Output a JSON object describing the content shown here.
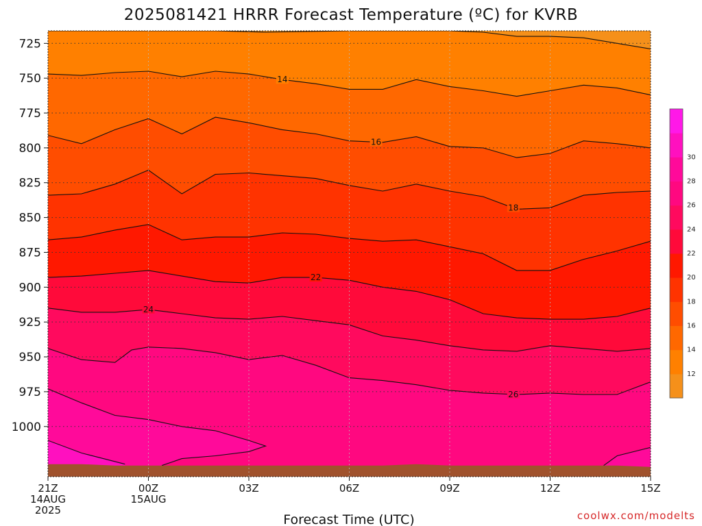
{
  "chart_data": {
    "type": "heatmap",
    "title": "2025081421 HRRR Forecast Temperature (ºC) for KVRB",
    "xlabel": "Forecast Time (UTC)",
    "ylabel": "",
    "credit": "coolwx.com/modelts",
    "y_scale": "pressure (inverted, hPa)",
    "ylim": [
      1036,
      716
    ],
    "y_ticks": [
      725,
      750,
      775,
      800,
      825,
      850,
      875,
      900,
      925,
      950,
      975,
      1000
    ],
    "x_ticks": [
      {
        "hour": 0,
        "line1": "21Z",
        "line2": "14AUG",
        "line3": "2025"
      },
      {
        "hour": 3,
        "line1": "00Z",
        "line2": "15AUG",
        "line3": ""
      },
      {
        "hour": 6,
        "line1": "03Z",
        "line2": "",
        "line3": ""
      },
      {
        "hour": 9,
        "line1": "06Z",
        "line2": "",
        "line3": ""
      },
      {
        "hour": 12,
        "line1": "09Z",
        "line2": "",
        "line3": ""
      },
      {
        "hour": 15,
        "line1": "12Z",
        "line2": "",
        "line3": ""
      },
      {
        "hour": 18,
        "line1": "15Z",
        "line2": "",
        "line3": ""
      }
    ],
    "grid": true,
    "colorbar": {
      "labels": [
        12,
        14,
        16,
        18,
        20,
        22,
        24,
        26,
        28,
        30
      ],
      "levels": [
        10,
        12,
        14,
        16,
        18,
        20,
        22,
        24,
        26,
        28,
        30,
        32
      ],
      "colors": [
        "#f5901a",
        "#ff8000",
        "#ff6800",
        "#ff4d00",
        "#ff3300",
        "#ff1800",
        "#ff0a3a",
        "#ff0a5e",
        "#ff0880",
        "#ff0a9a",
        "#ff10bf",
        "#ff18e8"
      ]
    },
    "ground_color": "#a0522d",
    "surface_pressure": [
      1027,
      1027,
      1028,
      1028,
      1028,
      1028,
      1028,
      1028,
      1028,
      1028,
      1028,
      1027,
      1028,
      1028,
      1028,
      1028,
      1028,
      1028,
      1029
    ],
    "isotherms": [
      {
        "value": 12,
        "label": "",
        "points": [
          [
            0,
            716
          ],
          [
            3,
            716
          ],
          [
            5,
            716
          ],
          [
            6.5,
            717
          ],
          [
            9,
            716
          ],
          [
            12,
            716
          ],
          [
            13,
            717
          ],
          [
            14,
            720
          ],
          [
            15,
            720
          ],
          [
            16,
            721
          ],
          [
            17,
            725
          ],
          [
            18,
            729
          ]
        ]
      },
      {
        "value": 14,
        "label": "14",
        "points": [
          [
            0,
            747
          ],
          [
            1,
            748
          ],
          [
            2,
            746
          ],
          [
            3,
            745
          ],
          [
            4,
            749
          ],
          [
            5,
            745
          ],
          [
            6,
            747
          ],
          [
            7,
            751
          ],
          [
            8,
            754
          ],
          [
            9,
            758
          ],
          [
            10,
            758
          ],
          [
            11,
            751
          ],
          [
            12,
            756
          ],
          [
            13,
            759
          ],
          [
            14,
            763
          ],
          [
            15,
            759
          ],
          [
            16,
            755
          ],
          [
            17,
            757
          ],
          [
            18,
            762
          ]
        ]
      },
      {
        "value": 16,
        "label": "16",
        "points": [
          [
            0,
            791
          ],
          [
            1,
            797
          ],
          [
            2,
            787
          ],
          [
            3,
            779
          ],
          [
            4,
            790
          ],
          [
            5,
            778
          ],
          [
            6,
            782
          ],
          [
            7,
            787
          ],
          [
            8,
            790
          ],
          [
            9,
            795
          ],
          [
            10,
            796
          ],
          [
            11,
            792
          ],
          [
            12,
            799
          ],
          [
            13,
            800
          ],
          [
            14,
            807
          ],
          [
            15,
            804
          ],
          [
            16,
            795
          ],
          [
            17,
            797
          ],
          [
            18,
            800
          ]
        ]
      },
      {
        "value": 18,
        "label": "18",
        "points": [
          [
            0,
            834
          ],
          [
            1,
            833
          ],
          [
            2,
            826
          ],
          [
            3,
            816
          ],
          [
            4,
            833
          ],
          [
            5,
            819
          ],
          [
            6,
            818
          ],
          [
            7,
            820
          ],
          [
            8,
            822
          ],
          [
            9,
            827
          ],
          [
            10,
            831
          ],
          [
            11,
            826
          ],
          [
            12,
            831
          ],
          [
            13,
            835
          ],
          [
            14,
            844
          ],
          [
            15,
            843
          ],
          [
            16,
            834
          ],
          [
            17,
            832
          ],
          [
            18,
            831
          ]
        ]
      },
      {
        "value": 20,
        "label": "",
        "points": [
          [
            0,
            866
          ],
          [
            1,
            864
          ],
          [
            2,
            859
          ],
          [
            3,
            855
          ],
          [
            4,
            866
          ],
          [
            5,
            864
          ],
          [
            6,
            864
          ],
          [
            7,
            861
          ],
          [
            8,
            862
          ],
          [
            9,
            865
          ],
          [
            10,
            867
          ],
          [
            11,
            866
          ],
          [
            12,
            871
          ],
          [
            13,
            876
          ],
          [
            14,
            888
          ],
          [
            15,
            888
          ],
          [
            16,
            880
          ],
          [
            17,
            874
          ],
          [
            18,
            867
          ]
        ]
      },
      {
        "value": 22,
        "label": "22",
        "points": [
          [
            0,
            893
          ],
          [
            1,
            892
          ],
          [
            2,
            890
          ],
          [
            3,
            888
          ],
          [
            4,
            892
          ],
          [
            5,
            896
          ],
          [
            6,
            897
          ],
          [
            7,
            893
          ],
          [
            8,
            893
          ],
          [
            9,
            895
          ],
          [
            10,
            900
          ],
          [
            11,
            903
          ],
          [
            12,
            909
          ],
          [
            13,
            919
          ],
          [
            14,
            922
          ],
          [
            15,
            923
          ],
          [
            16,
            923
          ],
          [
            17,
            921
          ],
          [
            18,
            915
          ]
        ]
      },
      {
        "value": 24,
        "label": "24",
        "points": [
          [
            0,
            915
          ],
          [
            1,
            918
          ],
          [
            2,
            918
          ],
          [
            3,
            916
          ],
          [
            4,
            919
          ],
          [
            5,
            922
          ],
          [
            6,
            923
          ],
          [
            7,
            921
          ],
          [
            8,
            924
          ],
          [
            9,
            927
          ],
          [
            10,
            935
          ],
          [
            11,
            938
          ],
          [
            12,
            942
          ],
          [
            13,
            945
          ],
          [
            14,
            946
          ],
          [
            15,
            942
          ],
          [
            16,
            944
          ],
          [
            17,
            946
          ],
          [
            18,
            944
          ]
        ]
      },
      {
        "value": 26,
        "label": "26",
        "points": [
          [
            0,
            944
          ],
          [
            1,
            952
          ],
          [
            2,
            954
          ],
          [
            2.5,
            945
          ],
          [
            3,
            943
          ],
          [
            4,
            944
          ],
          [
            5,
            947
          ],
          [
            6,
            952
          ],
          [
            7,
            949
          ],
          [
            8,
            956
          ],
          [
            9,
            965
          ],
          [
            10,
            967
          ],
          [
            11,
            970
          ],
          [
            12,
            974
          ],
          [
            13,
            976
          ],
          [
            14,
            977
          ],
          [
            15,
            976
          ],
          [
            16,
            977
          ],
          [
            17,
            977
          ],
          [
            18,
            968
          ]
        ]
      },
      {
        "value": 28,
        "label": "",
        "points": [
          [
            0,
            973
          ],
          [
            1,
            983
          ],
          [
            2,
            992
          ],
          [
            3,
            995
          ],
          [
            4,
            1000
          ],
          [
            5,
            1003
          ],
          [
            6,
            1010
          ],
          [
            6.5,
            1014
          ],
          [
            6,
            1018
          ],
          [
            5,
            1021
          ],
          [
            4,
            1023
          ],
          [
            3.4,
            1028
          ]
        ]
      },
      {
        "value": 28,
        "label": "",
        "points": [
          [
            16.6,
            1028
          ],
          [
            17,
            1021
          ],
          [
            18,
            1015
          ]
        ]
      },
      {
        "value": 30,
        "label": "",
        "points": [
          [
            0,
            1010
          ],
          [
            1,
            1019
          ],
          [
            2.3,
            1027
          ]
        ]
      }
    ]
  }
}
